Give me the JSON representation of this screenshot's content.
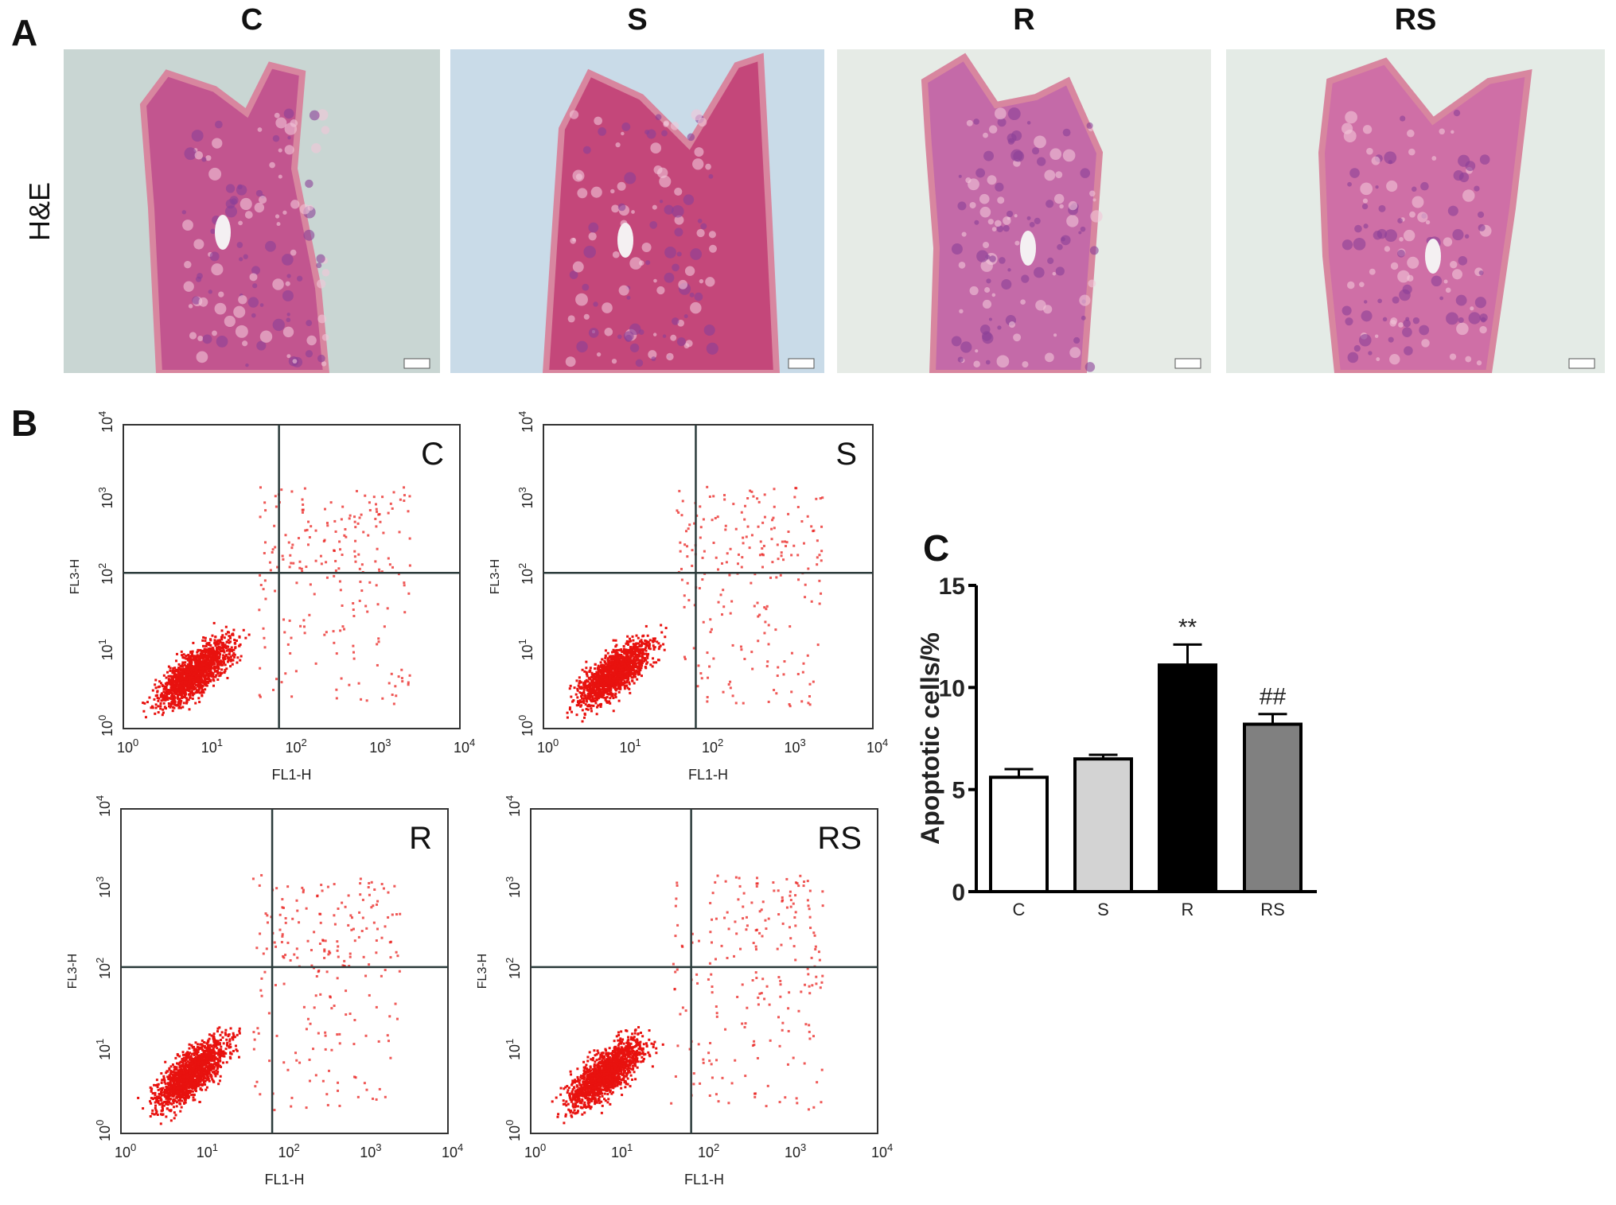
{
  "panel_labels": {
    "a": "A",
    "b": "B",
    "c": "C"
  },
  "panel_a": {
    "row_label": "H&E",
    "columns": [
      "C",
      "S",
      "R",
      "RS"
    ],
    "images": [
      {
        "group": "C",
        "background": "#c9d6d3",
        "tissue": "#c2558f"
      },
      {
        "group": "S",
        "background": "#c9dbe8",
        "tissue": "#c4477a"
      },
      {
        "group": "R",
        "background": "#e6ebe6",
        "tissue": "#c46aa8"
      },
      {
        "group": "RS",
        "background": "#e4ebe6",
        "tissue": "#cf6fa6"
      }
    ]
  },
  "panel_b": {
    "x_axis_label": "FL1-H",
    "y_axis_label": "FL3-H",
    "tick_labels": [
      "0",
      "1",
      "2",
      "3",
      "4"
    ],
    "tick_base": "10",
    "dot_color": "#e8120f",
    "plots": [
      {
        "label": "C"
      },
      {
        "label": "S"
      },
      {
        "label": "R"
      },
      {
        "label": "RS"
      }
    ]
  },
  "chart_data": {
    "type": "bar",
    "title": "",
    "xlabel": "",
    "ylabel": "Apoptotic cells/%",
    "categories": [
      "C",
      "S",
      "R",
      "RS"
    ],
    "values": [
      5.6,
      6.5,
      11.1,
      8.2
    ],
    "error_upper": [
      6.0,
      6.7,
      12.1,
      8.7
    ],
    "bar_colors": [
      "#ffffff",
      "#d3d3d3",
      "#000000",
      "#808080"
    ],
    "annotations": [
      "",
      "",
      "**",
      "##"
    ],
    "ylim": [
      0,
      15
    ],
    "yticks": [
      "0",
      "5",
      "10",
      "15"
    ],
    "grid": false
  }
}
